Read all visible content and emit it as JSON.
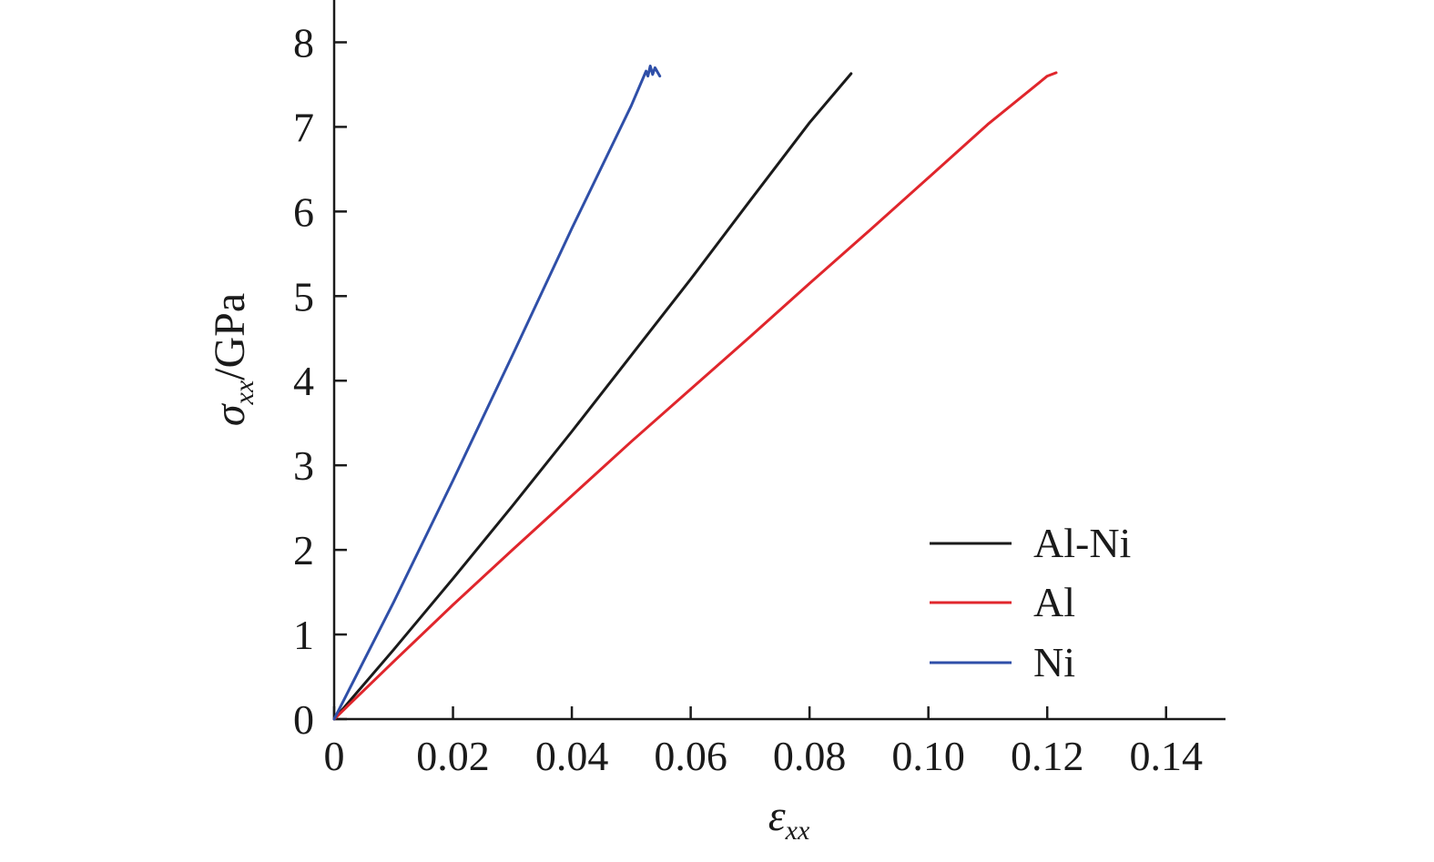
{
  "chart_data": {
    "type": "line",
    "xlabel": {
      "main": "ε",
      "sub": "xx"
    },
    "ylabel": {
      "main": "σ",
      "sub": "xx",
      "unit": "/GPa"
    },
    "xlim": [
      0,
      0.15
    ],
    "ylim": [
      0,
      8.5
    ],
    "x_ticks": [
      0,
      0.02,
      0.04,
      0.06,
      0.08,
      0.1,
      0.12,
      0.14
    ],
    "x_tick_labels": [
      "0",
      "0.02",
      "0.04",
      "0.06",
      "0.08",
      "0.10",
      "0.12",
      "0.14"
    ],
    "y_ticks": [
      0,
      1,
      2,
      3,
      4,
      5,
      6,
      7,
      8
    ],
    "y_tick_labels": [
      "0",
      "1",
      "2",
      "3",
      "4",
      "5",
      "6",
      "7",
      "8"
    ],
    "grid": false,
    "legend_position": "bottom-right",
    "series": [
      {
        "name": "Al-Ni",
        "color": "#1a1a1a",
        "points": [
          [
            0,
            0
          ],
          [
            0.01,
            0.82
          ],
          [
            0.02,
            1.66
          ],
          [
            0.03,
            2.52
          ],
          [
            0.04,
            3.4
          ],
          [
            0.05,
            4.3
          ],
          [
            0.06,
            5.2
          ],
          [
            0.07,
            6.13
          ],
          [
            0.08,
            7.05
          ],
          [
            0.087,
            7.63
          ]
        ]
      },
      {
        "name": "Al",
        "color": "#e0262c",
        "points": [
          [
            0,
            0
          ],
          [
            0.01,
            0.68
          ],
          [
            0.02,
            1.35
          ],
          [
            0.03,
            2.0
          ],
          [
            0.04,
            2.64
          ],
          [
            0.05,
            3.28
          ],
          [
            0.06,
            3.9
          ],
          [
            0.07,
            4.52
          ],
          [
            0.08,
            5.15
          ],
          [
            0.09,
            5.77
          ],
          [
            0.1,
            6.4
          ],
          [
            0.11,
            7.03
          ],
          [
            0.12,
            7.6
          ],
          [
            0.1215,
            7.64
          ]
        ]
      },
      {
        "name": "Ni",
        "color": "#2f4fa8",
        "points": [
          [
            0,
            0
          ],
          [
            0.01,
            1.38
          ],
          [
            0.02,
            2.82
          ],
          [
            0.03,
            4.3
          ],
          [
            0.04,
            5.8
          ],
          [
            0.05,
            7.25
          ],
          [
            0.0525,
            7.66
          ],
          [
            0.0528,
            7.6
          ],
          [
            0.0532,
            7.72
          ],
          [
            0.0536,
            7.62
          ],
          [
            0.054,
            7.7
          ],
          [
            0.0548,
            7.6
          ]
        ]
      }
    ]
  }
}
